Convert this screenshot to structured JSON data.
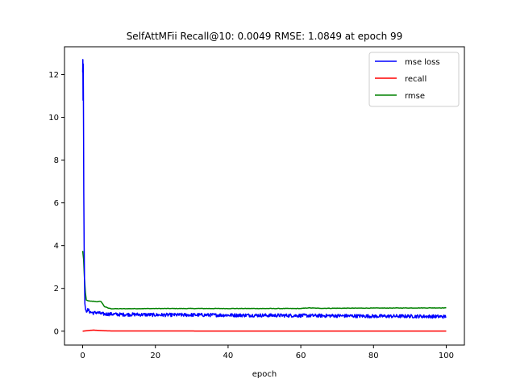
{
  "chart_data": {
    "type": "line",
    "title": "SelfAttMFii Recall@10: 0.0049 RMSE: 1.0849 at epoch 99",
    "xlabel": "epoch",
    "ylabel": "",
    "xlim": [
      -5,
      105
    ],
    "ylim": [
      -0.65,
      13.3
    ],
    "xticks": [
      0,
      20,
      40,
      60,
      80,
      100
    ],
    "yticks": [
      0,
      2,
      4,
      6,
      8,
      10,
      12
    ],
    "grid": false,
    "legend": "top-right",
    "series": [
      {
        "name": "mse loss",
        "color": "#0000ff",
        "x": [
          0,
          0.05,
          0.1,
          0.15,
          0.2,
          0.25,
          0.3,
          0.4,
          0.5,
          0.6,
          0.8,
          1.0,
          1.5,
          2,
          3,
          4,
          5,
          6,
          8,
          10,
          15,
          20,
          30,
          40,
          50,
          60,
          70,
          80,
          90,
          100
        ],
        "y": [
          12.1,
          12.7,
          10.8,
          12.5,
          11.0,
          9.0,
          6.5,
          4.0,
          2.4,
          1.3,
          1.0,
          0.95,
          1.0,
          0.9,
          0.85,
          0.88,
          0.82,
          0.8,
          0.8,
          0.78,
          0.78,
          0.76,
          0.76,
          0.75,
          0.74,
          0.73,
          0.72,
          0.7,
          0.7,
          0.68
        ],
        "noise": 0.08
      },
      {
        "name": "recall",
        "color": "#ff0000",
        "x": [
          0,
          1,
          2,
          3,
          4,
          6,
          8,
          10,
          20,
          40,
          60,
          80,
          100
        ],
        "y": [
          0.0,
          0.02,
          0.04,
          0.05,
          0.04,
          0.02,
          0.01,
          0.01,
          0.01,
          0.005,
          0.005,
          0.005,
          0.005
        ],
        "noise": 0
      },
      {
        "name": "rmse",
        "color": "#008000",
        "x": [
          0,
          0.3,
          0.6,
          1,
          2,
          3,
          4,
          5,
          6,
          7,
          8,
          10,
          20,
          40,
          60,
          62,
          65,
          80,
          100
        ],
        "y": [
          3.75,
          3.3,
          2.0,
          1.45,
          1.4,
          1.4,
          1.38,
          1.4,
          1.15,
          1.08,
          1.05,
          1.05,
          1.06,
          1.06,
          1.06,
          1.09,
          1.07,
          1.08,
          1.09
        ],
        "noise": 0.01
      }
    ]
  }
}
